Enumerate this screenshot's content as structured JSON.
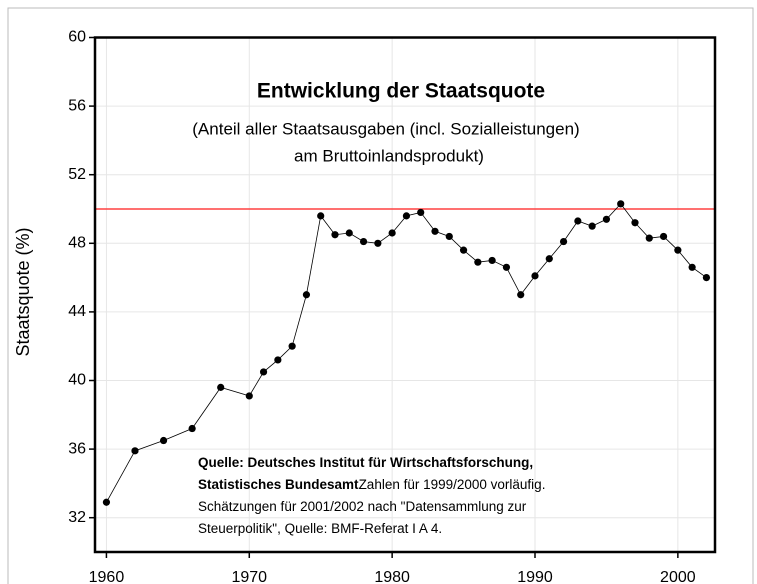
{
  "chart_data": {
    "type": "line",
    "title": "Entwicklung der Staatsquote",
    "subtitle": [
      "(Anteil aller Staatsausgaben (incl. Sozialleistungen)",
      "am Bruttoinlandsprodukt)"
    ],
    "y_label": "Staatsquote (%)",
    "x": [
      1960,
      1962,
      1964,
      1966,
      1968,
      1970,
      1971,
      1972,
      1973,
      1974,
      1975,
      1976,
      1977,
      1978,
      1979,
      1980,
      1981,
      1982,
      1983,
      1984,
      1985,
      1986,
      1987,
      1988,
      1989,
      1990,
      1991,
      1992,
      1993,
      1994,
      1995,
      1996,
      1997,
      1998,
      1999,
      2000,
      2001,
      2002
    ],
    "series": [
      {
        "name": "Staatsquote",
        "color": "#000000",
        "values": [
          32.9,
          35.9,
          36.5,
          37.2,
          39.6,
          39.1,
          40.5,
          41.2,
          42.0,
          45.0,
          49.6,
          48.5,
          48.6,
          48.1,
          48.0,
          48.6,
          49.6,
          49.8,
          48.7,
          48.4,
          47.6,
          46.9,
          47.0,
          46.6,
          45.0,
          46.1,
          47.1,
          48.1,
          49.3,
          49.0,
          49.4,
          50.3,
          49.2,
          48.3,
          48.4,
          47.6,
          46.6,
          46.0
        ]
      }
    ],
    "reference_line": {
      "value": 50,
      "color": "#ff4040"
    },
    "xlim": [
      1959.2,
      2002.6
    ],
    "xticks": [
      1960,
      1970,
      1980,
      1990,
      2000
    ],
    "ylim": [
      30,
      60
    ],
    "yticks": [
      32,
      36,
      40,
      44,
      48,
      52,
      56,
      60
    ],
    "grid": true,
    "annotation": [
      [
        {
          "text": "Quelle: Deutsches Institut für Wirtschaftsforschung,",
          "bold": true
        }
      ],
      [
        {
          "text": "Statistisches Bundesamt",
          "bold": true
        },
        {
          "text": "Zahlen für 1999/2000 vorläufig.",
          "bold": false
        }
      ],
      [
        {
          "text": "Schätzungen für 2001/2002 nach \"Datensammlung zur",
          "bold": false
        }
      ],
      [
        {
          "text": "Steuerpolitik\", Quelle: BMF-Referat I A 4.",
          "bold": false
        }
      ]
    ]
  }
}
